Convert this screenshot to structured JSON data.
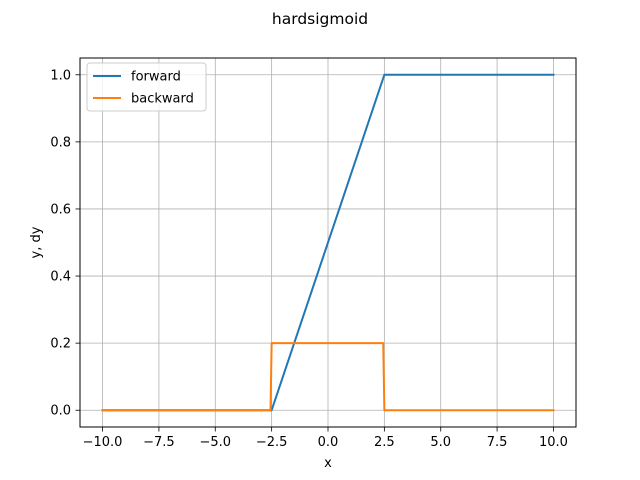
{
  "chart_data": {
    "type": "line",
    "title": "hardsigmoid",
    "xlabel": "x",
    "ylabel": "y, dy",
    "xlim": [
      -11.0,
      11.0
    ],
    "ylim": [
      -0.05,
      1.05
    ],
    "xticks": [
      -10.0,
      -7.5,
      -5.0,
      -2.5,
      0.0,
      2.5,
      5.0,
      7.5,
      10.0
    ],
    "xtick_labels": [
      "−10.0",
      "−7.5",
      "−5.0",
      "−2.5",
      "0.0",
      "2.5",
      "5.0",
      "7.5",
      "10.0"
    ],
    "yticks": [
      0.0,
      0.2,
      0.4,
      0.6,
      0.8,
      1.0
    ],
    "ytick_labels": [
      "0.0",
      "0.2",
      "0.4",
      "0.6",
      "0.8",
      "1.0"
    ],
    "grid": true,
    "legend_position": "upper-left",
    "series": [
      {
        "name": "forward",
        "color": "#1f77b4",
        "x": [
          -10.0,
          -2.5,
          2.5,
          10.0
        ],
        "y": [
          0.0,
          0.0,
          1.0,
          1.0
        ]
      },
      {
        "name": "backward",
        "color": "#ff7f0e",
        "x": [
          -10.0,
          -2.55,
          -2.5,
          2.45,
          2.5,
          10.0
        ],
        "y": [
          0.0,
          0.0,
          0.2,
          0.2,
          0.0,
          0.0
        ]
      }
    ]
  }
}
